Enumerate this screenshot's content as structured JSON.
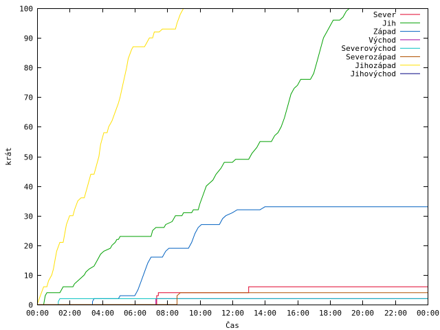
{
  "chart_data": {
    "type": "line",
    "title": "",
    "xlabel": "Čas",
    "ylabel": "krát",
    "x_unit": "hours",
    "xlim": [
      0,
      24
    ],
    "ylim": [
      0,
      100
    ],
    "x_ticks": [
      {
        "value": 0,
        "label": "00:00"
      },
      {
        "value": 2,
        "label": "02:00"
      },
      {
        "value": 4,
        "label": "04:00"
      },
      {
        "value": 6,
        "label": "06:00"
      },
      {
        "value": 8,
        "label": "08:00"
      },
      {
        "value": 10,
        "label": "10:00"
      },
      {
        "value": 12,
        "label": "12:00"
      },
      {
        "value": 14,
        "label": "14:00"
      },
      {
        "value": 16,
        "label": "16:00"
      },
      {
        "value": 18,
        "label": "18:00"
      },
      {
        "value": 20,
        "label": "20:00"
      },
      {
        "value": 22,
        "label": "22:00"
      },
      {
        "value": 24,
        "label": "00:00"
      }
    ],
    "y_ticks": [
      0,
      10,
      20,
      30,
      40,
      50,
      60,
      70,
      80,
      90,
      100
    ],
    "grid": false,
    "legend_position": "top-right",
    "series": [
      {
        "name": "Sever",
        "color": "#e0002a",
        "points": [
          [
            0,
            0
          ],
          [
            7.35,
            0
          ],
          [
            7.35,
            3
          ],
          [
            7.45,
            3
          ],
          [
            7.45,
            4
          ],
          [
            13.0,
            4
          ],
          [
            13.0,
            6
          ],
          [
            24.0,
            6
          ]
        ]
      },
      {
        "name": "Jih",
        "color": "#00a000",
        "points": [
          [
            0,
            0
          ],
          [
            0.4,
            0
          ],
          [
            0.5,
            3
          ],
          [
            0.6,
            4
          ],
          [
            1.4,
            4
          ],
          [
            1.5,
            5
          ],
          [
            1.6,
            6
          ],
          [
            2.2,
            6
          ],
          [
            2.3,
            7
          ],
          [
            2.5,
            8
          ],
          [
            2.7,
            9
          ],
          [
            2.9,
            10
          ],
          [
            3.0,
            11
          ],
          [
            3.2,
            12
          ],
          [
            3.5,
            13
          ],
          [
            3.7,
            15
          ],
          [
            3.9,
            17
          ],
          [
            4.1,
            18
          ],
          [
            4.5,
            19
          ],
          [
            4.6,
            20
          ],
          [
            4.8,
            21
          ],
          [
            4.9,
            22
          ],
          [
            5.0,
            22
          ],
          [
            5.1,
            23
          ],
          [
            7.0,
            23
          ],
          [
            7.1,
            25
          ],
          [
            7.3,
            26
          ],
          [
            7.8,
            26
          ],
          [
            7.9,
            27
          ],
          [
            8.3,
            28
          ],
          [
            8.5,
            30
          ],
          [
            8.9,
            30
          ],
          [
            9.0,
            31
          ],
          [
            9.5,
            31
          ],
          [
            9.6,
            32
          ],
          [
            9.9,
            32
          ],
          [
            10.0,
            34
          ],
          [
            10.2,
            37
          ],
          [
            10.4,
            40
          ],
          [
            10.6,
            41
          ],
          [
            10.8,
            42
          ],
          [
            11.0,
            44
          ],
          [
            11.3,
            46
          ],
          [
            11.5,
            48
          ],
          [
            12.0,
            48
          ],
          [
            12.2,
            49
          ],
          [
            13.0,
            49
          ],
          [
            13.2,
            51
          ],
          [
            13.5,
            53
          ],
          [
            13.7,
            55
          ],
          [
            14.4,
            55
          ],
          [
            14.6,
            57
          ],
          [
            14.8,
            58
          ],
          [
            15.0,
            60
          ],
          [
            15.2,
            63
          ],
          [
            15.4,
            67
          ],
          [
            15.6,
            71
          ],
          [
            15.8,
            73
          ],
          [
            16.0,
            74
          ],
          [
            16.2,
            76
          ],
          [
            16.8,
            76
          ],
          [
            17.0,
            78
          ],
          [
            17.2,
            82
          ],
          [
            17.4,
            86
          ],
          [
            17.6,
            90
          ],
          [
            17.8,
            92
          ],
          [
            18.0,
            94
          ],
          [
            18.2,
            96
          ],
          [
            18.6,
            96
          ],
          [
            18.8,
            97
          ],
          [
            19.0,
            99
          ],
          [
            19.2,
            100
          ]
        ]
      },
      {
        "name": "Západ",
        "color": "#0060c0",
        "points": [
          [
            0,
            0
          ],
          [
            3.4,
            0
          ],
          [
            3.4,
            1
          ],
          [
            3.5,
            2
          ],
          [
            5.0,
            2
          ],
          [
            5.1,
            3
          ],
          [
            6.0,
            3
          ],
          [
            6.1,
            4
          ],
          [
            6.2,
            5
          ],
          [
            6.4,
            8
          ],
          [
            6.6,
            11
          ],
          [
            6.8,
            14
          ],
          [
            7.0,
            16
          ],
          [
            7.7,
            16
          ],
          [
            7.9,
            18
          ],
          [
            8.1,
            19
          ],
          [
            9.3,
            19
          ],
          [
            9.5,
            21
          ],
          [
            9.7,
            24
          ],
          [
            9.9,
            26
          ],
          [
            10.1,
            27
          ],
          [
            11.2,
            27
          ],
          [
            11.4,
            29
          ],
          [
            11.6,
            30
          ],
          [
            12.0,
            31
          ],
          [
            12.3,
            32
          ],
          [
            13.7,
            32
          ],
          [
            14.0,
            33
          ],
          [
            24.0,
            33
          ]
        ]
      },
      {
        "name": "Východ",
        "color": "#a000a0",
        "points": [
          [
            0,
            0
          ],
          [
            7.3,
            0
          ],
          [
            7.3,
            2
          ],
          [
            24.0,
            2
          ]
        ]
      },
      {
        "name": "Severovýchod",
        "color": "#00c0c0",
        "points": [
          [
            0,
            0
          ],
          [
            1.3,
            0
          ],
          [
            1.3,
            1
          ],
          [
            1.4,
            2
          ],
          [
            24.0,
            2
          ]
        ]
      },
      {
        "name": "Severozápad",
        "color": "#b05000",
        "points": [
          [
            0,
            0
          ],
          [
            8.6,
            0
          ],
          [
            8.6,
            3
          ],
          [
            8.8,
            4
          ],
          [
            24.0,
            4
          ]
        ]
      },
      {
        "name": "Jihozápad",
        "color": "#ffe000",
        "points": [
          [
            0,
            0
          ],
          [
            0.2,
            3
          ],
          [
            0.4,
            6
          ],
          [
            0.6,
            6
          ],
          [
            0.7,
            8
          ],
          [
            0.9,
            10
          ],
          [
            1.0,
            12
          ],
          [
            1.1,
            15
          ],
          [
            1.2,
            18
          ],
          [
            1.4,
            21
          ],
          [
            1.6,
            21
          ],
          [
            1.7,
            24
          ],
          [
            1.8,
            27
          ],
          [
            2.0,
            30
          ],
          [
            2.2,
            30
          ],
          [
            2.3,
            32
          ],
          [
            2.5,
            35
          ],
          [
            2.7,
            36
          ],
          [
            2.9,
            36
          ],
          [
            3.1,
            40
          ],
          [
            3.3,
            44
          ],
          [
            3.5,
            44
          ],
          [
            3.6,
            46
          ],
          [
            3.8,
            50
          ],
          [
            3.9,
            54
          ],
          [
            4.1,
            58
          ],
          [
            4.3,
            58
          ],
          [
            4.4,
            60
          ],
          [
            4.6,
            62
          ],
          [
            4.8,
            65
          ],
          [
            5.0,
            68
          ],
          [
            5.1,
            70
          ],
          [
            5.3,
            75
          ],
          [
            5.5,
            80
          ],
          [
            5.6,
            83
          ],
          [
            5.8,
            86
          ],
          [
            5.9,
            87
          ],
          [
            6.6,
            87
          ],
          [
            6.7,
            88
          ],
          [
            6.9,
            90
          ],
          [
            7.1,
            90
          ],
          [
            7.2,
            92
          ],
          [
            7.5,
            92
          ],
          [
            7.7,
            93
          ],
          [
            8.5,
            93
          ],
          [
            8.6,
            95
          ],
          [
            8.8,
            98
          ],
          [
            9.0,
            100
          ]
        ]
      },
      {
        "name": "Jihovýchod",
        "color": "#000080",
        "points": []
      }
    ]
  }
}
